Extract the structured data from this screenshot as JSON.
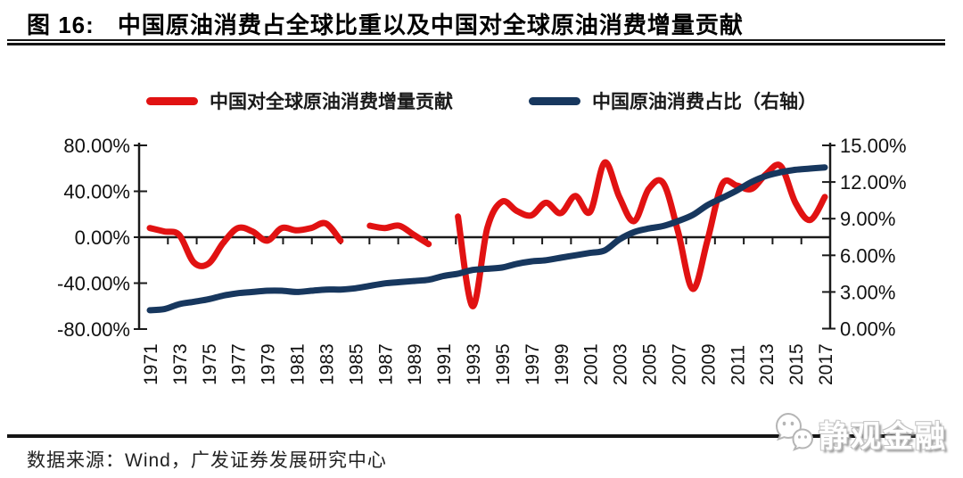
{
  "header": {
    "figure_label": "图 16:",
    "title": "中国原油消费占全球比重以及中国对全球原油消费增量贡献"
  },
  "legend": {
    "items": [
      {
        "label": "中国对全球原油消费增量贡献",
        "color": "#e11212"
      },
      {
        "label": "中国原油消费占比（右轴）",
        "color": "#17375e"
      }
    ]
  },
  "chart_data": {
    "type": "line",
    "title": "中国原油消费占全球比重以及中国对全球原油消费增量贡献",
    "x": [
      1971,
      1972,
      1973,
      1974,
      1975,
      1976,
      1977,
      1978,
      1979,
      1980,
      1981,
      1982,
      1983,
      1984,
      1985,
      1986,
      1987,
      1988,
      1989,
      1990,
      1991,
      1992,
      1993,
      1994,
      1995,
      1996,
      1997,
      1998,
      1999,
      2000,
      2001,
      2002,
      2003,
      2004,
      2005,
      2006,
      2007,
      2008,
      2009,
      2010,
      2011,
      2012,
      2013,
      2014,
      2015,
      2016,
      2017
    ],
    "series": [
      {
        "name": "中国对全球原油消费增量贡献",
        "axis": "left",
        "color": "#e11212",
        "values": [
          8,
          5,
          2,
          -22,
          -23,
          -5,
          8,
          5,
          -3,
          8,
          6,
          8,
          12,
          -3,
          null,
          10,
          8,
          10,
          2,
          -6,
          null,
          18,
          -60,
          8,
          31,
          23,
          19,
          30,
          21,
          36,
          22,
          65,
          35,
          14,
          42,
          47,
          5,
          -45,
          -3,
          46,
          45,
          42,
          55,
          62,
          30,
          15,
          35
        ]
      },
      {
        "name": "中国原油消费占比（右轴）",
        "axis": "right",
        "color": "#17375e",
        "values": [
          1.5,
          1.6,
          2.0,
          2.2,
          2.4,
          2.7,
          2.9,
          3.0,
          3.1,
          3.1,
          3.0,
          3.1,
          3.2,
          3.2,
          3.3,
          3.5,
          3.7,
          3.8,
          3.9,
          4.0,
          4.3,
          4.5,
          4.8,
          4.9,
          5.0,
          5.3,
          5.5,
          5.6,
          5.8,
          6.0,
          6.2,
          6.4,
          7.3,
          7.9,
          8.2,
          8.4,
          8.8,
          9.3,
          10.1,
          10.7,
          11.3,
          12.0,
          12.5,
          12.8,
          13.0,
          13.1,
          13.2
        ]
      }
    ],
    "left_axis": {
      "tick_labels": [
        "80.00%",
        "40.00%",
        "0.00%",
        "-40.00%",
        "-80.00%"
      ],
      "tick_values": [
        80,
        40,
        0,
        -40,
        -80
      ],
      "min": -80,
      "max": 80
    },
    "right_axis": {
      "tick_labels": [
        "15.00%",
        "12.00%",
        "9.00%",
        "6.00%",
        "3.00%",
        "0.00%"
      ],
      "tick_values": [
        15,
        12,
        9,
        6,
        3,
        0
      ],
      "min": 0,
      "max": 15
    },
    "x_tick_labels": [
      "1971",
      "1973",
      "1975",
      "1977",
      "1979",
      "1981",
      "1983",
      "1985",
      "1987",
      "1989",
      "1991",
      "1993",
      "1995",
      "1997",
      "1999",
      "2001",
      "2003",
      "2005",
      "2007",
      "2009",
      "2011",
      "2013",
      "2015",
      "2017"
    ],
    "grid": false,
    "legend_position": "top",
    "axis_color": "#1a1a1a"
  },
  "footer": {
    "source": "数据来源：Wind，广发证券发展研究中心",
    "watermark": "静观金融"
  }
}
